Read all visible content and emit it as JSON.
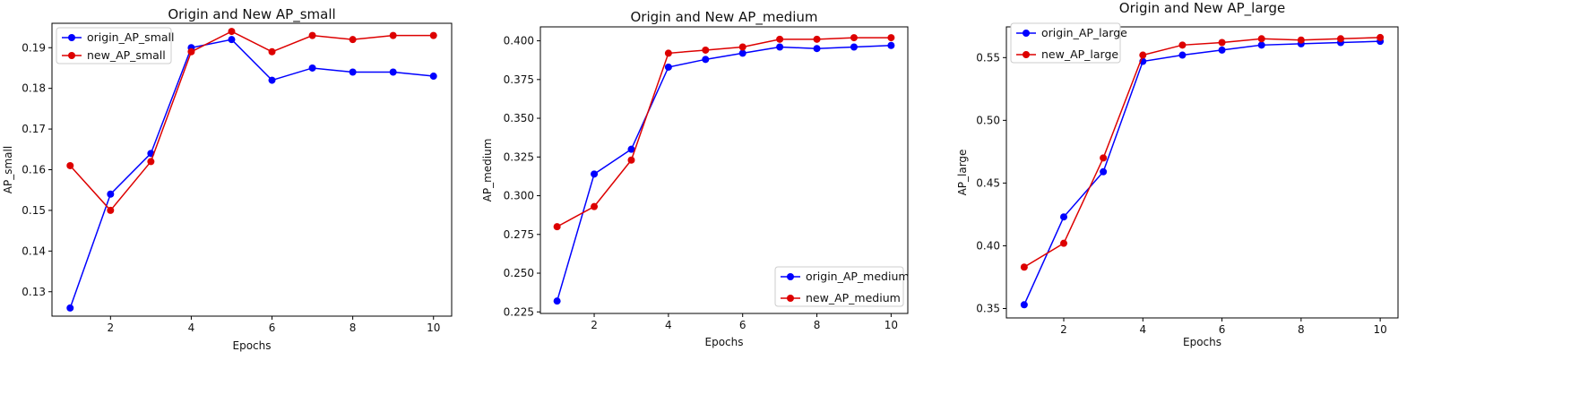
{
  "chart_data": [
    {
      "type": "line",
      "title": "Origin and New AP_small",
      "xlabel": "Epochs",
      "ylabel": "AP_small",
      "x": [
        1,
        2,
        3,
        4,
        5,
        6,
        7,
        8,
        9,
        10
      ],
      "xticks": [
        "2",
        "4",
        "6",
        "8",
        "10"
      ],
      "yticks": [
        "0.13",
        "0.14",
        "0.15",
        "0.16",
        "0.17",
        "0.18",
        "0.19"
      ],
      "ylim": [
        0.124,
        0.196
      ],
      "xlim": [
        0.55,
        10.45
      ],
      "legend_position": "top-left",
      "series": [
        {
          "name": "origin_AP_small",
          "color": "#0000ff",
          "values": [
            0.126,
            0.154,
            0.164,
            0.19,
            0.192,
            0.182,
            0.185,
            0.184,
            0.184,
            0.183
          ]
        },
        {
          "name": "new_AP_small",
          "color": "#dd0000",
          "values": [
            0.161,
            0.15,
            0.162,
            0.189,
            0.194,
            0.189,
            0.193,
            0.192,
            0.193,
            0.193
          ]
        }
      ]
    },
    {
      "type": "line",
      "title": "Origin and New AP_medium",
      "xlabel": "Epochs",
      "ylabel": "AP_medium",
      "x": [
        1,
        2,
        3,
        4,
        5,
        6,
        7,
        8,
        9,
        10
      ],
      "xticks": [
        "2",
        "4",
        "6",
        "8",
        "10"
      ],
      "yticks": [
        "0.225",
        "0.250",
        "0.275",
        "0.300",
        "0.325",
        "0.350",
        "0.375",
        "0.400"
      ],
      "ylim": [
        0.224,
        0.409
      ],
      "xlim": [
        0.55,
        10.45
      ],
      "legend_position": "bottom-right",
      "series": [
        {
          "name": "origin_AP_medium",
          "color": "#0000ff",
          "values": [
            0.232,
            0.314,
            0.33,
            0.383,
            0.388,
            0.392,
            0.396,
            0.395,
            0.396,
            0.397
          ]
        },
        {
          "name": "new_AP_medium",
          "color": "#dd0000",
          "values": [
            0.28,
            0.293,
            0.323,
            0.392,
            0.394,
            0.396,
            0.401,
            0.401,
            0.402,
            0.402
          ]
        }
      ]
    },
    {
      "type": "line",
      "title": "Origin and New AP_large",
      "xlabel": "Epochs",
      "ylabel": "AP_large",
      "x": [
        1,
        2,
        3,
        4,
        5,
        6,
        7,
        8,
        9,
        10
      ],
      "xticks": [
        "2",
        "4",
        "6",
        "8",
        "10"
      ],
      "yticks": [
        "0.35",
        "0.40",
        "0.45",
        "0.50",
        "0.55"
      ],
      "ylim": [
        0.3425,
        0.5745
      ],
      "xlim": [
        0.55,
        10.45
      ],
      "legend_position": "top-left",
      "series": [
        {
          "name": "origin_AP_large",
          "color": "#0000ff",
          "values": [
            0.353,
            0.423,
            0.459,
            0.547,
            0.552,
            0.556,
            0.56,
            0.561,
            0.562,
            0.563
          ]
        },
        {
          "name": "new_AP_large",
          "color": "#dd0000",
          "values": [
            0.383,
            0.402,
            0.47,
            0.552,
            0.56,
            0.562,
            0.565,
            0.564,
            0.565,
            0.566
          ]
        }
      ]
    }
  ]
}
